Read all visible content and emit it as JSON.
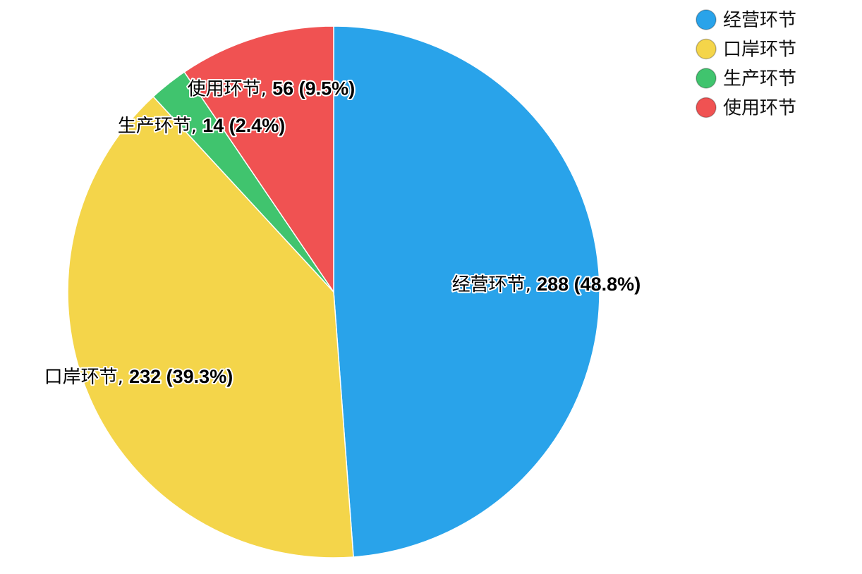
{
  "chart_data": {
    "type": "pie",
    "start": "top",
    "direction": "clockwise",
    "legend_position": "top-right",
    "slices": [
      {
        "name": "经营环节",
        "value": 288,
        "percent": "48.8%",
        "color": "#29a3ea"
      },
      {
        "name": "口岸环节",
        "value": 232,
        "percent": "39.3%",
        "color": "#f4d54a"
      },
      {
        "name": "生产环节",
        "value": 14,
        "percent": "2.4%",
        "color": "#40c46e"
      },
      {
        "name": "使用环节",
        "value": 56,
        "percent": "9.5%",
        "color": "#f05252"
      }
    ]
  }
}
